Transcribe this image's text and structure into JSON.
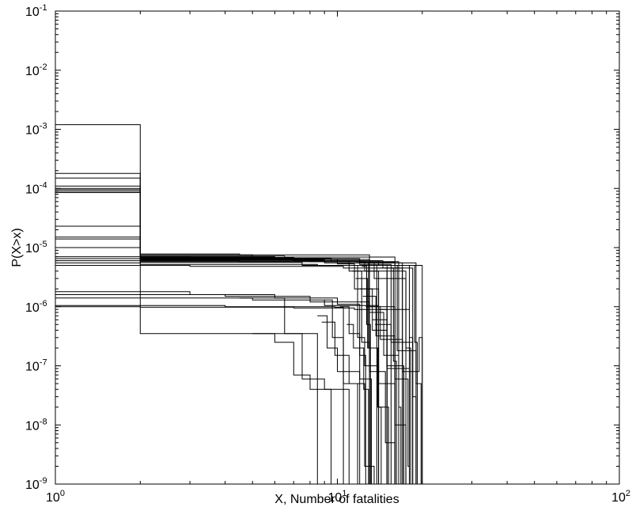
{
  "chart_data": {
    "type": "line",
    "title": "",
    "xlabel": "X, Number of fatalities",
    "ylabel": "P(X>x)",
    "x_scale": "log",
    "y_scale": "log",
    "xlim": [
      1,
      100
    ],
    "ylim": [
      1e-09,
      0.1
    ],
    "grid": false,
    "legend": "none",
    "x_ticks": [
      {
        "value": 1,
        "base": "10",
        "exp": "0"
      },
      {
        "value": 10,
        "base": "10",
        "exp": "1"
      },
      {
        "value": 100,
        "base": "10",
        "exp": "2"
      }
    ],
    "y_ticks": [
      {
        "value": 1e-09,
        "base": "10",
        "exp": "-9"
      },
      {
        "value": 1e-08,
        "base": "10",
        "exp": "-8"
      },
      {
        "value": 1e-07,
        "base": "10",
        "exp": "-7"
      },
      {
        "value": 1e-06,
        "base": "10",
        "exp": "-6"
      },
      {
        "value": 1e-05,
        "base": "10",
        "exp": "-5"
      },
      {
        "value": 0.0001,
        "base": "10",
        "exp": "-4"
      },
      {
        "value": 0.001,
        "base": "10",
        "exp": "-3"
      },
      {
        "value": 0.01,
        "base": "10",
        "exp": "-2"
      },
      {
        "value": 0.1,
        "base": "10",
        "exp": "-1"
      }
    ],
    "series": [
      {
        "steps": [
          [
            1,
            0.0012
          ],
          [
            2,
            3.5e-07
          ],
          [
            8.5,
            1e-09
          ]
        ]
      },
      {
        "steps": [
          [
            1,
            0.00018
          ],
          [
            2,
            7.5e-06
          ],
          [
            5,
            6.5e-06
          ],
          [
            12,
            5.5e-06
          ],
          [
            17,
            1e-09
          ]
        ]
      },
      {
        "steps": [
          [
            1,
            0.00015
          ],
          [
            2,
            7e-06
          ],
          [
            6,
            6.3e-06
          ],
          [
            13,
            5.6e-06
          ],
          [
            16,
            1e-09
          ]
        ]
      },
      {
        "steps": [
          [
            1,
            0.00011
          ],
          [
            2,
            6.8e-06
          ],
          [
            7,
            6e-06
          ],
          [
            14,
            5e-06
          ],
          [
            18,
            1e-09
          ]
        ]
      },
      {
        "steps": [
          [
            1,
            0.0001
          ],
          [
            2,
            6.5e-06
          ],
          [
            8,
            5.8e-06
          ],
          [
            12.5,
            4e-06
          ],
          [
            15,
            1e-09
          ]
        ]
      },
      {
        "steps": [
          [
            1,
            9.5e-05
          ],
          [
            2,
            6.2e-06
          ],
          [
            9,
            5.5e-06
          ],
          [
            13.5,
            3e-06
          ],
          [
            17.5,
            1e-09
          ]
        ]
      },
      {
        "steps": [
          [
            1,
            9e-05
          ],
          [
            2,
            6e-06
          ],
          [
            10,
            5.3e-06
          ],
          [
            11.5,
            2e-06
          ],
          [
            14,
            1e-09
          ]
        ]
      },
      {
        "steps": [
          [
            1,
            8.5e-05
          ],
          [
            2,
            5.8e-06
          ],
          [
            11,
            5e-06
          ],
          [
            15,
            1e-09
          ]
        ]
      },
      {
        "steps": [
          [
            1,
            2.3e-05
          ],
          [
            2,
            7.8e-06
          ],
          [
            4.5,
            7.5e-06
          ],
          [
            13,
            5.5e-06
          ],
          [
            19,
            1e-09
          ]
        ]
      },
      {
        "steps": [
          [
            1,
            1.5e-05
          ],
          [
            2,
            7.2e-06
          ],
          [
            6.5,
            6.9e-06
          ],
          [
            16,
            5e-06
          ],
          [
            20,
            1e-09
          ]
        ]
      },
      {
        "steps": [
          [
            1,
            1.4e-05
          ],
          [
            2,
            6.6e-06
          ],
          [
            9.5,
            6e-06
          ],
          [
            14.5,
            4.5e-06
          ],
          [
            18.5,
            1e-09
          ]
        ]
      },
      {
        "steps": [
          [
            1,
            1e-05
          ],
          [
            2,
            6.3e-06
          ],
          [
            12,
            5.7e-06
          ],
          [
            13,
            1e-09
          ]
        ]
      },
      {
        "steps": [
          [
            1,
            7e-06
          ],
          [
            3,
            6.5e-06
          ],
          [
            10,
            5.8e-06
          ],
          [
            16.5,
            1e-09
          ]
        ]
      },
      {
        "steps": [
          [
            1,
            6.5e-06
          ],
          [
            2,
            5.6e-06
          ],
          [
            7.5,
            5e-06
          ],
          [
            11,
            4e-06
          ],
          [
            14,
            1e-09
          ]
        ]
      },
      {
        "steps": [
          [
            1,
            6e-06
          ],
          [
            4.5,
            5.8e-06
          ],
          [
            12,
            5.2e-06
          ],
          [
            15.5,
            1e-09
          ]
        ]
      },
      {
        "steps": [
          [
            1,
            5.5e-06
          ],
          [
            2,
            5.2e-06
          ],
          [
            8.5,
            5e-06
          ],
          [
            13.8,
            1e-09
          ]
        ]
      },
      {
        "steps": [
          [
            1,
            5e-06
          ],
          [
            3,
            4.8e-06
          ],
          [
            10.5,
            4.5e-06
          ],
          [
            17,
            1e-09
          ]
        ]
      },
      {
        "steps": [
          [
            1,
            1.8e-06
          ],
          [
            3,
            1.6e-06
          ],
          [
            6,
            1.4e-06
          ],
          [
            10,
            1.1e-06
          ],
          [
            12,
            1e-09
          ]
        ]
      },
      {
        "steps": [
          [
            1,
            1.6e-06
          ],
          [
            4,
            1.5e-06
          ],
          [
            8,
            1.2e-06
          ],
          [
            13,
            1e-06
          ],
          [
            16,
            1e-09
          ]
        ]
      },
      {
        "steps": [
          [
            1,
            1.4e-06
          ],
          [
            5,
            1.3e-06
          ],
          [
            9,
            1.05e-06
          ],
          [
            14,
            9e-07
          ],
          [
            18,
            1e-09
          ]
        ]
      },
      {
        "steps": [
          [
            1,
            1e-06
          ],
          [
            2,
            9.8e-07
          ],
          [
            7,
            9.5e-07
          ],
          [
            11.5,
            9e-07
          ],
          [
            15,
            1e-09
          ]
        ]
      },
      {
        "steps": [
          [
            1,
            1.05e-06
          ],
          [
            4,
            1e-06
          ],
          [
            9.8,
            9.8e-07
          ],
          [
            10.5,
            1e-09
          ]
        ]
      },
      {
        "steps": [
          [
            4.5,
            1.4e-06
          ],
          [
            6.5,
            3.5e-07
          ],
          [
            7.5,
            6e-08
          ],
          [
            9,
            4e-08
          ],
          [
            11,
            1e-09
          ]
        ]
      },
      {
        "steps": [
          [
            5,
            3.5e-07
          ],
          [
            6,
            2.5e-07
          ],
          [
            7,
            7e-08
          ],
          [
            8,
            4e-08
          ],
          [
            9.5,
            1e-09
          ]
        ]
      },
      {
        "steps": [
          [
            8.5,
            7e-07
          ],
          [
            9.2,
            2e-07
          ],
          [
            10,
            8e-08
          ],
          [
            12,
            6e-08
          ],
          [
            13.2,
            1e-09
          ]
        ]
      },
      {
        "steps": [
          [
            8.8,
            5.5e-07
          ],
          [
            9.8,
            1.5e-07
          ],
          [
            11,
            5e-08
          ],
          [
            12.5,
            2e-09
          ],
          [
            13.5,
            1e-09
          ]
        ]
      },
      {
        "steps": [
          [
            11,
            5e-06
          ],
          [
            11.8,
            3e-07
          ],
          [
            12.5,
            1e-07
          ],
          [
            14,
            2e-08
          ],
          [
            15.2,
            1e-09
          ]
        ]
      },
      {
        "steps": [
          [
            11.3,
            4e-06
          ],
          [
            12.2,
            2.5e-07
          ],
          [
            13,
            8e-08
          ],
          [
            14.8,
            5e-09
          ],
          [
            16,
            1e-09
          ]
        ]
      },
      {
        "steps": [
          [
            11.6,
            3e-06
          ],
          [
            12.8,
            2e-07
          ],
          [
            14,
            5e-08
          ],
          [
            16,
            1e-08
          ],
          [
            17.2,
            1e-09
          ]
        ]
      },
      {
        "steps": [
          [
            12,
            2e-06
          ],
          [
            13.3,
            4e-07
          ],
          [
            15,
            9e-08
          ],
          [
            18,
            3e-07
          ],
          [
            18.5,
            1e-09
          ]
        ]
      },
      {
        "steps": [
          [
            12.3,
            1.5e-06
          ],
          [
            13.7,
            3.2e-07
          ],
          [
            16,
            6e-08
          ],
          [
            17.8,
            2e-09
          ],
          [
            18,
            1e-09
          ]
        ]
      },
      {
        "steps": [
          [
            12.6,
            1e-06
          ],
          [
            14.2,
            2.8e-07
          ],
          [
            17,
            8e-08
          ],
          [
            19.5,
            3e-07
          ],
          [
            20,
            1e-09
          ]
        ]
      },
      {
        "steps": [
          [
            13,
            8e-07
          ],
          [
            14.6,
            1.5e-07
          ],
          [
            16.5,
            2e-08
          ],
          [
            16.8,
            1e-09
          ]
        ]
      },
      {
        "steps": [
          [
            13.3,
            6e-07
          ],
          [
            15,
            1e-07
          ],
          [
            17.2,
            1e-08
          ],
          [
            17.5,
            1e-09
          ]
        ]
      },
      {
        "steps": [
          [
            13.6,
            5e-07
          ],
          [
            15.5,
            2.5e-07
          ],
          [
            18.5,
            3e-08
          ],
          [
            19,
            1e-09
          ]
        ]
      },
      {
        "steps": [
          [
            11.7,
            5.5e-06
          ],
          [
            12.9,
            2e-07
          ],
          [
            13.9,
            2e-08
          ],
          [
            14.3,
            1e-09
          ]
        ]
      },
      {
        "steps": [
          [
            14,
            4.5e-06
          ],
          [
            15.8,
            1.2e-07
          ],
          [
            16.2,
            1e-09
          ]
        ]
      },
      {
        "steps": [
          [
            14.5,
            5e-06
          ],
          [
            16.3,
            1.8e-07
          ],
          [
            19,
            5e-08
          ],
          [
            19.8,
            1e-09
          ]
        ]
      },
      {
        "steps": [
          [
            15,
            4e-06
          ],
          [
            17.5,
            2e-07
          ],
          [
            18.2,
            1e-09
          ]
        ]
      },
      {
        "steps": [
          [
            16,
            5e-06
          ],
          [
            18.8,
            2.5e-07
          ],
          [
            19.2,
            1e-09
          ]
        ]
      },
      {
        "steps": [
          [
            12.2,
            4.8e-06
          ],
          [
            12.7,
            5e-07
          ],
          [
            13.1,
            1e-09
          ]
        ]
      },
      {
        "steps": [
          [
            10.2,
            1e-06
          ],
          [
            11,
            3.5e-07
          ],
          [
            12,
            1.5e-07
          ],
          [
            12.6,
            1e-09
          ]
        ]
      },
      {
        "steps": [
          [
            10.8,
            5e-07
          ],
          [
            11.4,
            2e-07
          ],
          [
            12.4,
            4e-08
          ],
          [
            12.9,
            1e-09
          ]
        ]
      },
      {
        "steps": [
          [
            9,
            1.3e-06
          ],
          [
            9.6,
            3e-07
          ],
          [
            10.5,
            5e-08
          ],
          [
            11.8,
            1e-09
          ]
        ]
      }
    ]
  }
}
